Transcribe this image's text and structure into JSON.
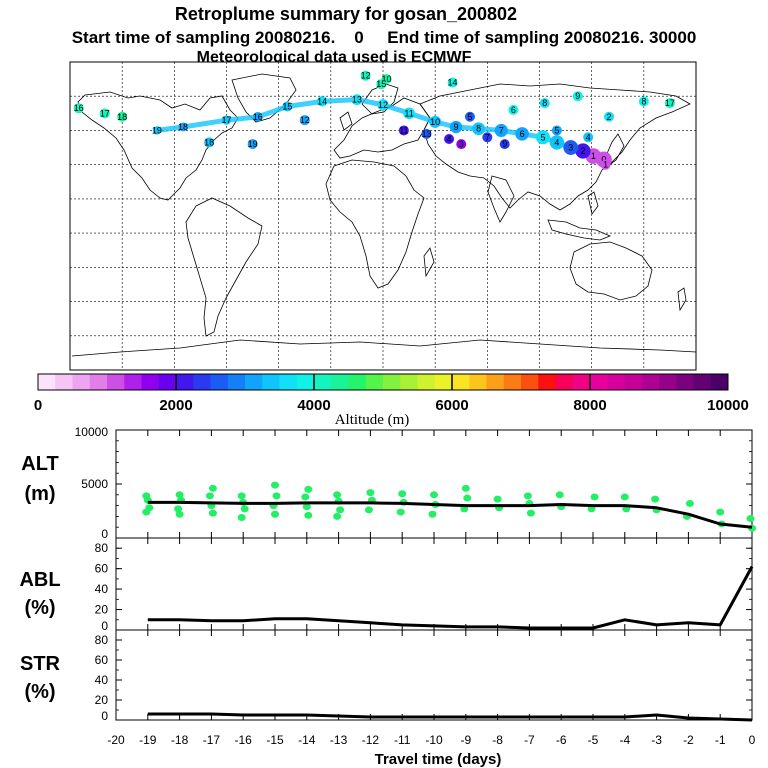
{
  "header": {
    "title": "Retroplume summary for gosan_200802",
    "line2": "Start time of sampling 20080216.    0     End time of sampling 20080216. 30000",
    "line3": "Meteorological data used is ECMWF"
  },
  "colorbar": {
    "label": "Altitude  (m)",
    "ticks": [
      "0",
      "2000",
      "4000",
      "6000",
      "8000",
      "10000"
    ],
    "colors": [
      "#fbe3fb",
      "#f5c6f5",
      "#eea4f0",
      "#e27ee8",
      "#cc4fe6",
      "#b020ec",
      "#9000f0",
      "#6a00f0",
      "#4216ee",
      "#2a3af0",
      "#1a5cf4",
      "#1480f8",
      "#10a4fc",
      "#10c4fc",
      "#10e0f8",
      "#12f2e4",
      "#14f4be",
      "#18f496",
      "#24f46a",
      "#54f44a",
      "#82f23e",
      "#aaf034",
      "#cef22e",
      "#ecf228",
      "#fce424",
      "#fcc41c",
      "#fca018",
      "#fc7c14",
      "#fc5010",
      "#fc1010",
      "#f8005a",
      "#f20088",
      "#e8009e",
      "#d8009c",
      "#c8009a",
      "#b00094",
      "#96008a",
      "#7a0080",
      "#620074",
      "#4a0066"
    ]
  },
  "map": {
    "markers": [
      {
        "label": "0",
        "lon": 127,
        "lat": 33,
        "alt": 1000
      },
      {
        "label": "1",
        "lon": 121,
        "lat": 35,
        "alt": 1200
      },
      {
        "label": "2",
        "lon": 115,
        "lat": 38,
        "alt": 2100
      },
      {
        "label": "3",
        "lon": 108,
        "lat": 40,
        "alt": 2700
      },
      {
        "label": "4",
        "lon": 100,
        "lat": 43,
        "alt": 3300
      },
      {
        "label": "5",
        "lon": 92,
        "lat": 46,
        "alt": 3500
      },
      {
        "label": "6",
        "lon": 80,
        "lat": 48,
        "alt": 3200
      },
      {
        "label": "7",
        "lon": 68,
        "lat": 50,
        "alt": 3000
      },
      {
        "label": "8",
        "lon": 55,
        "lat": 51,
        "alt": 3300
      },
      {
        "label": "9",
        "lon": 42,
        "lat": 52,
        "alt": 3000
      },
      {
        "label": "10",
        "lon": 30,
        "lat": 55,
        "alt": 3400
      },
      {
        "label": "11",
        "lon": 15,
        "lat": 60,
        "alt": 3500
      },
      {
        "label": "12",
        "lon": 0,
        "lat": 65,
        "alt": 3700
      },
      {
        "label": "13",
        "lon": -15,
        "lat": 68,
        "alt": 3600
      },
      {
        "label": "14",
        "lon": -35,
        "lat": 67,
        "alt": 3600
      },
      {
        "label": "15",
        "lon": -55,
        "lat": 64,
        "alt": 3400
      },
      {
        "label": "16",
        "lon": -72,
        "lat": 58,
        "alt": 3200
      },
      {
        "label": "17",
        "lon": -90,
        "lat": 56,
        "alt": 3300
      },
      {
        "label": "18",
        "lon": -115,
        "lat": 52,
        "alt": 3100
      },
      {
        "label": "19",
        "lon": -130,
        "lat": 50,
        "alt": 3300
      },
      {
        "label": "10",
        "lon": 2,
        "lat": 80,
        "alt": 4300
      },
      {
        "label": "12",
        "lon": -10,
        "lat": 82,
        "alt": 4100
      },
      {
        "label": "14",
        "lon": 40,
        "lat": 78,
        "alt": 3900
      },
      {
        "label": "15",
        "lon": -1,
        "lat": 77,
        "alt": 4000
      },
      {
        "label": "8",
        "lon": 93,
        "lat": 66,
        "alt": 3700
      },
      {
        "label": "9",
        "lon": 112,
        "lat": 70,
        "alt": 3800
      },
      {
        "label": "2",
        "lon": 130,
        "lat": 58,
        "alt": 3700
      },
      {
        "label": "16",
        "lon": -175,
        "lat": 63,
        "alt": 4000
      },
      {
        "label": "17",
        "lon": -160,
        "lat": 60,
        "alt": 4200
      },
      {
        "label": "18",
        "lon": -150,
        "lat": 58,
        "alt": 4300
      },
      {
        "label": "6",
        "lon": 75,
        "lat": 62,
        "alt": 3900
      },
      {
        "label": "5",
        "lon": 50,
        "lat": 58,
        "alt": 2700
      },
      {
        "label": "4",
        "lon": 38,
        "lat": 45,
        "alt": 2200
      },
      {
        "label": "3",
        "lon": 45,
        "lat": 42,
        "alt": 1600
      },
      {
        "label": "7",
        "lon": 60,
        "lat": 46,
        "alt": 2400
      },
      {
        "label": "13",
        "lon": 25,
        "lat": 48,
        "alt": 2600
      },
      {
        "label": "11",
        "lon": 12,
        "lat": 50,
        "alt": 2000
      },
      {
        "label": "19",
        "lon": -75,
        "lat": 42,
        "alt": 3000
      },
      {
        "label": "18",
        "lon": -100,
        "lat": 43,
        "alt": 3400
      },
      {
        "label": "12",
        "lon": -45,
        "lat": 56,
        "alt": 3100
      },
      {
        "label": "9",
        "lon": 70,
        "lat": 42,
        "alt": 2400
      },
      {
        "label": "1",
        "lon": 128,
        "lat": 30,
        "alt": 1100
      },
      {
        "label": "4",
        "lon": 118,
        "lat": 46,
        "alt": 3400
      },
      {
        "label": "5",
        "lon": 100,
        "lat": 50,
        "alt": 3000
      },
      {
        "label": "8",
        "lon": 150,
        "lat": 67,
        "alt": 3900
      },
      {
        "label": "17",
        "lon": 165,
        "lat": 66,
        "alt": 4000
      }
    ]
  },
  "chart_data": [
    {
      "type": "scatter+line",
      "name": "ALT",
      "ylabel": "ALT\n(m)",
      "ylabel_lines": [
        "ALT",
        "(m)"
      ],
      "xlim": [
        -20,
        0
      ],
      "ylim": [
        0,
        10000
      ],
      "yticks": [
        "10000",
        "5000",
        "0"
      ],
      "median_line": {
        "x": [
          -19,
          -18,
          -17,
          -16,
          -15,
          -14,
          -13,
          -12,
          -11,
          -10,
          -9,
          -8,
          -7,
          -6,
          -5,
          -4,
          -3,
          -2,
          -1,
          0
        ],
        "y": [
          3300,
          3300,
          3250,
          3200,
          3200,
          3250,
          3250,
          3250,
          3200,
          3100,
          3000,
          3000,
          3000,
          3100,
          3000,
          3000,
          2800,
          2200,
          1300,
          1000
        ]
      },
      "scatter": {
        "x": [
          -19,
          -19,
          -19,
          -19,
          -18,
          -18,
          -18,
          -18,
          -17,
          -17,
          -17,
          -17,
          -16,
          -16,
          -16,
          -16,
          -15,
          -15,
          -15,
          -15,
          -14,
          -14,
          -14,
          -14,
          -13,
          -13,
          -13,
          -13,
          -12,
          -12,
          -12,
          -11,
          -11,
          -11,
          -10,
          -10,
          -10,
          -9,
          -9,
          -9,
          -8,
          -8,
          -7,
          -7,
          -7,
          -6,
          -6,
          -5,
          -5,
          -4,
          -4,
          -3,
          -3,
          -2,
          -2,
          -1,
          -1,
          0,
          0
        ],
        "y": [
          3900,
          3500,
          2800,
          2400,
          4000,
          3500,
          2700,
          2200,
          4600,
          3900,
          3000,
          2300,
          3900,
          3300,
          2700,
          1900,
          4900,
          3900,
          3000,
          2200,
          4500,
          3800,
          2900,
          2100,
          4000,
          3400,
          2600,
          2000,
          4200,
          3500,
          2600,
          4100,
          3300,
          2400,
          4000,
          3100,
          2200,
          4600,
          3700,
          2700,
          3600,
          2800,
          3900,
          3200,
          2300,
          4000,
          2900,
          3800,
          2700,
          3800,
          2700,
          3600,
          2600,
          3200,
          2000,
          2400,
          1300,
          1800,
          900
        ],
        "color": "#22ee66"
      }
    },
    {
      "type": "line",
      "name": "ABL",
      "ylabel_lines": [
        "ABL",
        "(%)"
      ],
      "xlim": [
        -20,
        0
      ],
      "ylim": [
        0,
        90
      ],
      "yticks": [
        "80",
        "60",
        "40",
        "20",
        "0"
      ],
      "x": [
        -19,
        -18,
        -17,
        -16,
        -15,
        -14,
        -13,
        -12,
        -11,
        -10,
        -9,
        -8,
        -7,
        -6,
        -5,
        -4,
        -3,
        -2,
        -1,
        0
      ],
      "y": [
        10,
        10,
        9,
        9,
        11,
        11,
        9,
        7,
        5,
        4,
        3,
        3,
        2,
        2,
        2,
        10,
        5,
        7,
        5,
        62
      ]
    },
    {
      "type": "line",
      "name": "STR",
      "ylabel_lines": [
        "STR",
        "(%)"
      ],
      "xlim": [
        -20,
        0
      ],
      "ylim": [
        0,
        90
      ],
      "yticks": [
        "80",
        "60",
        "40",
        "20",
        "0"
      ],
      "x": [
        -19,
        -18,
        -17,
        -16,
        -15,
        -14,
        -13,
        -12,
        -11,
        -10,
        -9,
        -8,
        -7,
        -6,
        -5,
        -4,
        -3,
        -2,
        -1,
        0
      ],
      "y": [
        6,
        6,
        6,
        5,
        5,
        5,
        4,
        3,
        3,
        3,
        3,
        3,
        3,
        3,
        3,
        3,
        5,
        2,
        1,
        0
      ],
      "xlabel": "Travel time (days)",
      "xticks": [
        "-20",
        "-19",
        "-18",
        "-17",
        "-16",
        "-15",
        "-14",
        "-13",
        "-12",
        "-11",
        "-10",
        "-9",
        "-8",
        "-7",
        "-6",
        "-5",
        "-4",
        "-3",
        "-2",
        "-1",
        "0"
      ]
    }
  ]
}
